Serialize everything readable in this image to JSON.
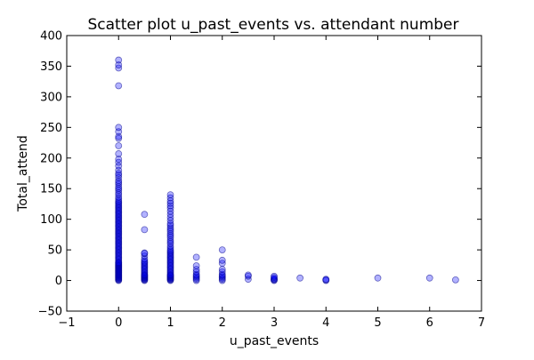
{
  "chart_data": {
    "type": "scatter",
    "title": "Scatter plot u_past_events vs. attendant number",
    "xlabel": "u_past_events",
    "ylabel": "Total_attend",
    "xlim": [
      -1,
      7
    ],
    "ylim": [
      -50,
      400
    ],
    "xticks": [
      "−1",
      "0",
      "1",
      "2",
      "3",
      "4",
      "5",
      "6",
      "7"
    ],
    "yticks": [
      "−50",
      "0",
      "50",
      "100",
      "150",
      "200",
      "250",
      "300",
      "350",
      "400"
    ],
    "xtick_values": [
      -1,
      0,
      1,
      2,
      3,
      4,
      5,
      6,
      7
    ],
    "ytick_values": [
      -50,
      0,
      50,
      100,
      150,
      200,
      250,
      300,
      350,
      400
    ],
    "grid": false,
    "legend": false,
    "marker_color": "#0000ff",
    "marker_edge_color": "#00008b",
    "marker_opacity": 0.3,
    "series": [
      {
        "points": [
          [
            0,
            0
          ],
          [
            0,
            1
          ],
          [
            0,
            2
          ],
          [
            0,
            3
          ],
          [
            0,
            4
          ],
          [
            0,
            5
          ],
          [
            0,
            6
          ],
          [
            0,
            7
          ],
          [
            0,
            8
          ],
          [
            0,
            9
          ],
          [
            0,
            10
          ],
          [
            0,
            11
          ],
          [
            0,
            12
          ],
          [
            0,
            13
          ],
          [
            0,
            14
          ],
          [
            0,
            15
          ],
          [
            0,
            16
          ],
          [
            0,
            17
          ],
          [
            0,
            18
          ],
          [
            0,
            19
          ],
          [
            0,
            20
          ],
          [
            0,
            21
          ],
          [
            0,
            22
          ],
          [
            0,
            23
          ],
          [
            0,
            24
          ],
          [
            0,
            25
          ],
          [
            0,
            26
          ],
          [
            0,
            27
          ],
          [
            0,
            28
          ],
          [
            0,
            29
          ],
          [
            0,
            30
          ],
          [
            0,
            32
          ],
          [
            0,
            34
          ],
          [
            0,
            36
          ],
          [
            0,
            38
          ],
          [
            0,
            40
          ],
          [
            0,
            42
          ],
          [
            0,
            44
          ],
          [
            0,
            46
          ],
          [
            0,
            48
          ],
          [
            0,
            50
          ],
          [
            0,
            52
          ],
          [
            0,
            54
          ],
          [
            0,
            56
          ],
          [
            0,
            58
          ],
          [
            0,
            60
          ],
          [
            0,
            62
          ],
          [
            0,
            64
          ],
          [
            0,
            66
          ],
          [
            0,
            68
          ],
          [
            0,
            70
          ],
          [
            0,
            72
          ],
          [
            0,
            74
          ],
          [
            0,
            76
          ],
          [
            0,
            78
          ],
          [
            0,
            80
          ],
          [
            0,
            82
          ],
          [
            0,
            84
          ],
          [
            0,
            86
          ],
          [
            0,
            88
          ],
          [
            0,
            90
          ],
          [
            0,
            92
          ],
          [
            0,
            94
          ],
          [
            0,
            96
          ],
          [
            0,
            98
          ],
          [
            0,
            100
          ],
          [
            0,
            102
          ],
          [
            0,
            104
          ],
          [
            0,
            106
          ],
          [
            0,
            108
          ],
          [
            0,
            110
          ],
          [
            0,
            112
          ],
          [
            0,
            114
          ],
          [
            0,
            116
          ],
          [
            0,
            118
          ],
          [
            0,
            120
          ],
          [
            0,
            122
          ],
          [
            0,
            124
          ],
          [
            0,
            126
          ],
          [
            0,
            128
          ],
          [
            0,
            130
          ],
          [
            0,
            133
          ],
          [
            0,
            136
          ],
          [
            0,
            140
          ],
          [
            0,
            143
          ],
          [
            0,
            147
          ],
          [
            0,
            150
          ],
          [
            0,
            153
          ],
          [
            0,
            157
          ],
          [
            0,
            160
          ],
          [
            0,
            163
          ],
          [
            0,
            168
          ],
          [
            0,
            172
          ],
          [
            0,
            175
          ],
          [
            0,
            180
          ],
          [
            0,
            187
          ],
          [
            0,
            193
          ],
          [
            0,
            198
          ],
          [
            0,
            207
          ],
          [
            0,
            220
          ],
          [
            0,
            232
          ],
          [
            0,
            235
          ],
          [
            0,
            243
          ],
          [
            0,
            250
          ],
          [
            0,
            318
          ],
          [
            0,
            347
          ],
          [
            0,
            352
          ],
          [
            0,
            360
          ],
          [
            0.5,
            0
          ],
          [
            0.5,
            1
          ],
          [
            0.5,
            2
          ],
          [
            0.5,
            3
          ],
          [
            0.5,
            4
          ],
          [
            0.5,
            5
          ],
          [
            0.5,
            6
          ],
          [
            0.5,
            7
          ],
          [
            0.5,
            8
          ],
          [
            0.5,
            9
          ],
          [
            0.5,
            10
          ],
          [
            0.5,
            12
          ],
          [
            0.5,
            14
          ],
          [
            0.5,
            16
          ],
          [
            0.5,
            18
          ],
          [
            0.5,
            20
          ],
          [
            0.5,
            22
          ],
          [
            0.5,
            24
          ],
          [
            0.5,
            26
          ],
          [
            0.5,
            28
          ],
          [
            0.5,
            30
          ],
          [
            0.5,
            32
          ],
          [
            0.5,
            35
          ],
          [
            0.5,
            40
          ],
          [
            0.5,
            44
          ],
          [
            0.5,
            45
          ],
          [
            0.5,
            83
          ],
          [
            0.5,
            108
          ],
          [
            1,
            0
          ],
          [
            1,
            1
          ],
          [
            1,
            2
          ],
          [
            1,
            3
          ],
          [
            1,
            4
          ],
          [
            1,
            5
          ],
          [
            1,
            6
          ],
          [
            1,
            7
          ],
          [
            1,
            8
          ],
          [
            1,
            9
          ],
          [
            1,
            10
          ],
          [
            1,
            12
          ],
          [
            1,
            14
          ],
          [
            1,
            16
          ],
          [
            1,
            18
          ],
          [
            1,
            20
          ],
          [
            1,
            22
          ],
          [
            1,
            24
          ],
          [
            1,
            26
          ],
          [
            1,
            28
          ],
          [
            1,
            30
          ],
          [
            1,
            32
          ],
          [
            1,
            34
          ],
          [
            1,
            36
          ],
          [
            1,
            38
          ],
          [
            1,
            40
          ],
          [
            1,
            42
          ],
          [
            1,
            44
          ],
          [
            1,
            46
          ],
          [
            1,
            48
          ],
          [
            1,
            50
          ],
          [
            1,
            53
          ],
          [
            1,
            56
          ],
          [
            1,
            60
          ],
          [
            1,
            63
          ],
          [
            1,
            66
          ],
          [
            1,
            70
          ],
          [
            1,
            73
          ],
          [
            1,
            76
          ],
          [
            1,
            80
          ],
          [
            1,
            83
          ],
          [
            1,
            86
          ],
          [
            1,
            90
          ],
          [
            1,
            93
          ],
          [
            1,
            98
          ],
          [
            1,
            103
          ],
          [
            1,
            108
          ],
          [
            1,
            113
          ],
          [
            1,
            118
          ],
          [
            1,
            122
          ],
          [
            1,
            126
          ],
          [
            1,
            130
          ],
          [
            1,
            135
          ],
          [
            1,
            140
          ],
          [
            1.5,
            0
          ],
          [
            1.5,
            2
          ],
          [
            1.5,
            4
          ],
          [
            1.5,
            6
          ],
          [
            1.5,
            8
          ],
          [
            1.5,
            10
          ],
          [
            1.5,
            14
          ],
          [
            1.5,
            18
          ],
          [
            1.5,
            24
          ],
          [
            1.5,
            38
          ],
          [
            2,
            0
          ],
          [
            2,
            2
          ],
          [
            2,
            4
          ],
          [
            2,
            6
          ],
          [
            2,
            8
          ],
          [
            2,
            10
          ],
          [
            2,
            14
          ],
          [
            2,
            18
          ],
          [
            2,
            28
          ],
          [
            2,
            33
          ],
          [
            2,
            50
          ],
          [
            2.5,
            2
          ],
          [
            2.5,
            7
          ],
          [
            2.5,
            9
          ],
          [
            3,
            0
          ],
          [
            3,
            1
          ],
          [
            3,
            2
          ],
          [
            3,
            3
          ],
          [
            3,
            5
          ],
          [
            3,
            7
          ],
          [
            3.5,
            4
          ],
          [
            4,
            0
          ],
          [
            4,
            1
          ],
          [
            4,
            2
          ],
          [
            5,
            4
          ],
          [
            6,
            4
          ],
          [
            6.5,
            1
          ]
        ]
      }
    ]
  }
}
